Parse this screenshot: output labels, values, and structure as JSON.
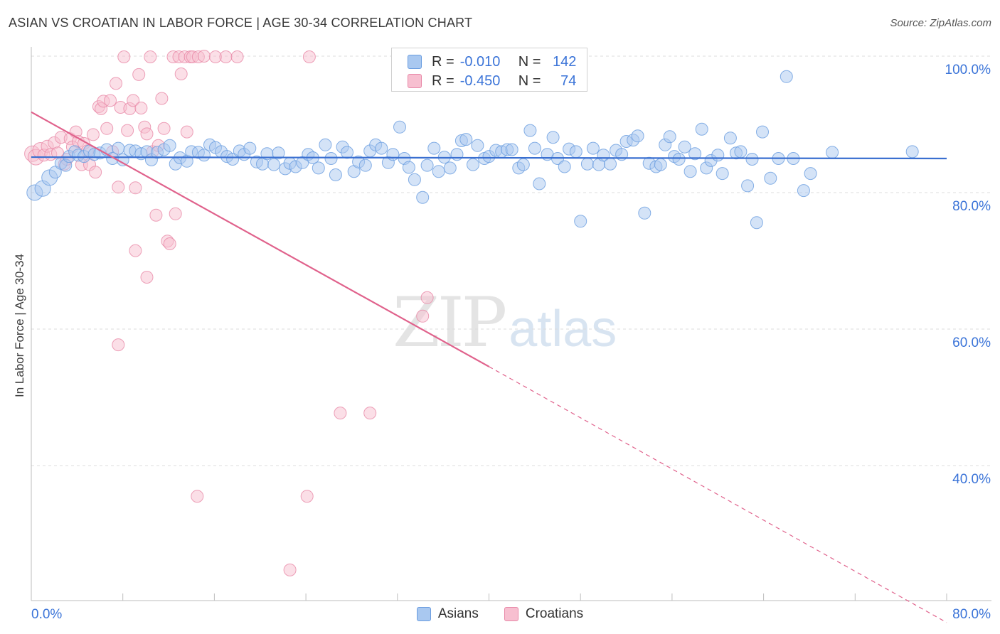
{
  "header": {
    "title": "ASIAN VS CROATIAN IN LABOR FORCE | AGE 30-34 CORRELATION CHART",
    "source": "Source: ZipAtlas.com"
  },
  "watermark": {
    "zip": "ZIP",
    "atlas": "atlas"
  },
  "legend": {
    "asians": {
      "r_label": "R =",
      "r_value": "-0.010",
      "n_label": "N =",
      "n_value": "142",
      "color": "#a9c8f0",
      "border": "#6a9de0"
    },
    "croatians": {
      "r_label": "R =",
      "r_value": "-0.450",
      "n_label": "N =",
      "n_value": "74",
      "color": "#f7bfd0",
      "border": "#e889a8"
    }
  },
  "bottom_legend": {
    "asians": "Asians",
    "croatians": "Croatians"
  },
  "chart_data": {
    "type": "scatter",
    "title": "ASIAN VS CROATIAN IN LABOR FORCE | AGE 30-34 CORRELATION CHART",
    "xlabel": "",
    "ylabel": "In Labor Force | Age 30-34",
    "xlim": [
      0,
      80
    ],
    "ylim": [
      22,
      101
    ],
    "x_tick_labels": [
      {
        "value": 0,
        "label": "0.0%"
      },
      {
        "value": 80,
        "label": "80.0%"
      }
    ],
    "y_tick_labels": [
      {
        "value": 100,
        "label": "100.0%"
      },
      {
        "value": 80,
        "label": "80.0%"
      },
      {
        "value": 60,
        "label": "60.0%"
      },
      {
        "value": 40,
        "label": "40.0%"
      }
    ],
    "y_gridlines": [
      100,
      80,
      60,
      40
    ],
    "series": [
      {
        "name": "Asians",
        "color": "#6a9de0",
        "fill": "#a9c8f0",
        "trend": {
          "x0": 0,
          "y0": 85.2,
          "x1": 80,
          "y1": 85.0,
          "color": "#3a6fd0"
        },
        "points": [
          [
            0.3,
            80.0
          ],
          [
            1.0,
            80.6
          ],
          [
            1.6,
            82.2
          ],
          [
            2.1,
            83.0
          ],
          [
            2.6,
            84.3
          ],
          [
            3.0,
            84.0
          ],
          [
            3.3,
            85.3
          ],
          [
            3.8,
            86.0
          ],
          [
            4.1,
            85.5
          ],
          [
            4.6,
            85.3
          ],
          [
            5.1,
            86.1
          ],
          [
            5.5,
            85.6
          ],
          [
            6.0,
            85.8
          ],
          [
            6.6,
            86.3
          ],
          [
            7.1,
            85.0
          ],
          [
            7.6,
            86.5
          ],
          [
            8.0,
            84.8
          ],
          [
            8.6,
            86.2
          ],
          [
            9.1,
            86.1
          ],
          [
            9.6,
            85.7
          ],
          [
            10.1,
            86.0
          ],
          [
            10.5,
            84.8
          ],
          [
            11.0,
            85.9
          ],
          [
            11.6,
            86.3
          ],
          [
            12.1,
            86.9
          ],
          [
            12.6,
            84.2
          ],
          [
            13.0,
            85.1
          ],
          [
            13.6,
            84.6
          ],
          [
            14.0,
            86.0
          ],
          [
            14.6,
            85.9
          ],
          [
            15.1,
            85.5
          ],
          [
            15.6,
            87.0
          ],
          [
            16.1,
            86.6
          ],
          [
            16.6,
            86.0
          ],
          [
            17.1,
            85.3
          ],
          [
            17.6,
            84.9
          ],
          [
            18.2,
            86.1
          ],
          [
            18.6,
            85.6
          ],
          [
            19.1,
            86.5
          ],
          [
            19.7,
            84.5
          ],
          [
            20.2,
            84.2
          ],
          [
            20.6,
            85.7
          ],
          [
            21.2,
            84.1
          ],
          [
            21.6,
            85.8
          ],
          [
            22.2,
            83.5
          ],
          [
            22.6,
            84.3
          ],
          [
            23.1,
            83.8
          ],
          [
            23.7,
            84.4
          ],
          [
            24.2,
            85.6
          ],
          [
            24.6,
            85.1
          ],
          [
            25.1,
            83.6
          ],
          [
            25.7,
            87.0
          ],
          [
            26.2,
            85.0
          ],
          [
            26.6,
            82.6
          ],
          [
            27.2,
            86.7
          ],
          [
            27.6,
            85.9
          ],
          [
            28.2,
            83.1
          ],
          [
            28.6,
            84.5
          ],
          [
            29.2,
            84.0
          ],
          [
            29.6,
            86.1
          ],
          [
            30.1,
            87.0
          ],
          [
            30.6,
            86.5
          ],
          [
            31.2,
            84.4
          ],
          [
            31.6,
            85.6
          ],
          [
            32.2,
            89.6
          ],
          [
            32.6,
            85.0
          ],
          [
            33.0,
            83.7
          ],
          [
            33.5,
            81.9
          ],
          [
            34.2,
            79.3
          ],
          [
            34.6,
            84.0
          ],
          [
            35.2,
            86.5
          ],
          [
            35.6,
            83.1
          ],
          [
            36.1,
            85.2
          ],
          [
            36.6,
            83.6
          ],
          [
            37.2,
            85.6
          ],
          [
            37.6,
            87.6
          ],
          [
            38.0,
            87.8
          ],
          [
            38.6,
            84.1
          ],
          [
            39.0,
            86.9
          ],
          [
            39.6,
            85.0
          ],
          [
            40.0,
            85.3
          ],
          [
            40.6,
            86.2
          ],
          [
            41.1,
            86.0
          ],
          [
            41.6,
            86.3
          ],
          [
            42.0,
            86.3
          ],
          [
            42.6,
            83.6
          ],
          [
            43.0,
            84.1
          ],
          [
            43.6,
            89.1
          ],
          [
            44.0,
            86.5
          ],
          [
            44.4,
            81.3
          ],
          [
            45.1,
            85.6
          ],
          [
            45.6,
            88.1
          ],
          [
            46.0,
            85.0
          ],
          [
            46.6,
            83.8
          ],
          [
            47.0,
            86.4
          ],
          [
            47.6,
            86.0
          ],
          [
            48.0,
            75.8
          ],
          [
            48.6,
            84.2
          ],
          [
            49.1,
            86.5
          ],
          [
            49.6,
            84.1
          ],
          [
            50.0,
            85.5
          ],
          [
            50.6,
            84.2
          ],
          [
            51.1,
            86.2
          ],
          [
            51.6,
            85.6
          ],
          [
            52.0,
            87.5
          ],
          [
            52.6,
            87.7
          ],
          [
            53.0,
            88.3
          ],
          [
            53.6,
            77.0
          ],
          [
            54.0,
            84.3
          ],
          [
            54.6,
            83.8
          ],
          [
            55.0,
            84.1
          ],
          [
            55.4,
            87.0
          ],
          [
            55.8,
            88.2
          ],
          [
            56.2,
            85.3
          ],
          [
            56.6,
            84.9
          ],
          [
            57.1,
            86.7
          ],
          [
            57.6,
            83.1
          ],
          [
            58.0,
            85.7
          ],
          [
            58.6,
            89.3
          ],
          [
            59.0,
            83.6
          ],
          [
            59.4,
            84.7
          ],
          [
            60.0,
            85.5
          ],
          [
            60.4,
            82.8
          ],
          [
            61.1,
            88.0
          ],
          [
            61.6,
            85.8
          ],
          [
            62.0,
            86.0
          ],
          [
            62.6,
            81.0
          ],
          [
            63.0,
            84.9
          ],
          [
            63.4,
            75.6
          ],
          [
            63.9,
            88.9
          ],
          [
            64.6,
            82.1
          ],
          [
            65.3,
            85.0
          ],
          [
            66.0,
            97.0
          ],
          [
            66.6,
            85.0
          ],
          [
            67.5,
            80.3
          ],
          [
            68.1,
            82.8
          ],
          [
            70.0,
            85.9
          ],
          [
            77.0,
            86.0
          ]
        ]
      },
      {
        "name": "Croatians",
        "color": "#e889a8",
        "fill": "#f7bfd0",
        "trend": {
          "x0": 0,
          "y0": 91.8,
          "x1": 40,
          "y1": 54.5,
          "x2": 80,
          "y2": 17.0,
          "color": "#e0628c"
        },
        "points": [
          [
            0.1,
            85.7
          ],
          [
            0.4,
            85.2
          ],
          [
            0.8,
            86.2
          ],
          [
            1.1,
            85.5
          ],
          [
            1.4,
            86.8
          ],
          [
            1.7,
            85.6
          ],
          [
            2.0,
            87.3
          ],
          [
            2.3,
            85.8
          ],
          [
            2.6,
            88.1
          ],
          [
            2.9,
            84.2
          ],
          [
            3.1,
            84.9
          ],
          [
            3.4,
            87.9
          ],
          [
            3.6,
            86.7
          ],
          [
            3.9,
            88.9
          ],
          [
            4.1,
            87.5
          ],
          [
            4.4,
            84.1
          ],
          [
            4.6,
            87.2
          ],
          [
            4.9,
            86.1
          ],
          [
            5.1,
            84.1
          ],
          [
            5.4,
            88.5
          ],
          [
            5.6,
            83.0
          ],
          [
            5.9,
            92.6
          ],
          [
            6.1,
            92.3
          ],
          [
            6.3,
            93.4
          ],
          [
            6.6,
            89.4
          ],
          [
            6.9,
            93.5
          ],
          [
            7.1,
            86.0
          ],
          [
            7.4,
            96.0
          ],
          [
            7.6,
            80.8
          ],
          [
            7.8,
            92.5
          ],
          [
            8.1,
            99.9
          ],
          [
            8.4,
            89.1
          ],
          [
            8.6,
            92.3
          ],
          [
            8.9,
            93.5
          ],
          [
            9.1,
            80.7
          ],
          [
            9.4,
            97.3
          ],
          [
            9.6,
            92.4
          ],
          [
            9.9,
            89.6
          ],
          [
            10.1,
            88.6
          ],
          [
            10.4,
            99.9
          ],
          [
            10.6,
            86.0
          ],
          [
            10.9,
            76.7
          ],
          [
            11.1,
            86.9
          ],
          [
            11.4,
            93.8
          ],
          [
            11.6,
            89.4
          ],
          [
            11.9,
            72.9
          ],
          [
            12.1,
            72.5
          ],
          [
            12.4,
            99.9
          ],
          [
            12.6,
            76.9
          ],
          [
            12.9,
            99.9
          ],
          [
            13.1,
            97.4
          ],
          [
            13.4,
            99.9
          ],
          [
            13.6,
            88.9
          ],
          [
            13.9,
            99.9
          ],
          [
            14.1,
            99.9
          ],
          [
            14.6,
            99.9
          ],
          [
            15.1,
            100.0
          ],
          [
            16.1,
            99.9
          ],
          [
            17.0,
            99.9
          ],
          [
            18.0,
            99.9
          ],
          [
            24.3,
            99.9
          ],
          [
            7.6,
            57.7
          ],
          [
            10.1,
            67.6
          ],
          [
            9.1,
            71.5
          ],
          [
            34.6,
            64.6
          ],
          [
            34.2,
            61.9
          ],
          [
            27.0,
            47.7
          ],
          [
            29.6,
            47.7
          ],
          [
            14.5,
            35.5
          ],
          [
            24.1,
            35.5
          ],
          [
            22.6,
            24.7
          ]
        ]
      }
    ]
  }
}
